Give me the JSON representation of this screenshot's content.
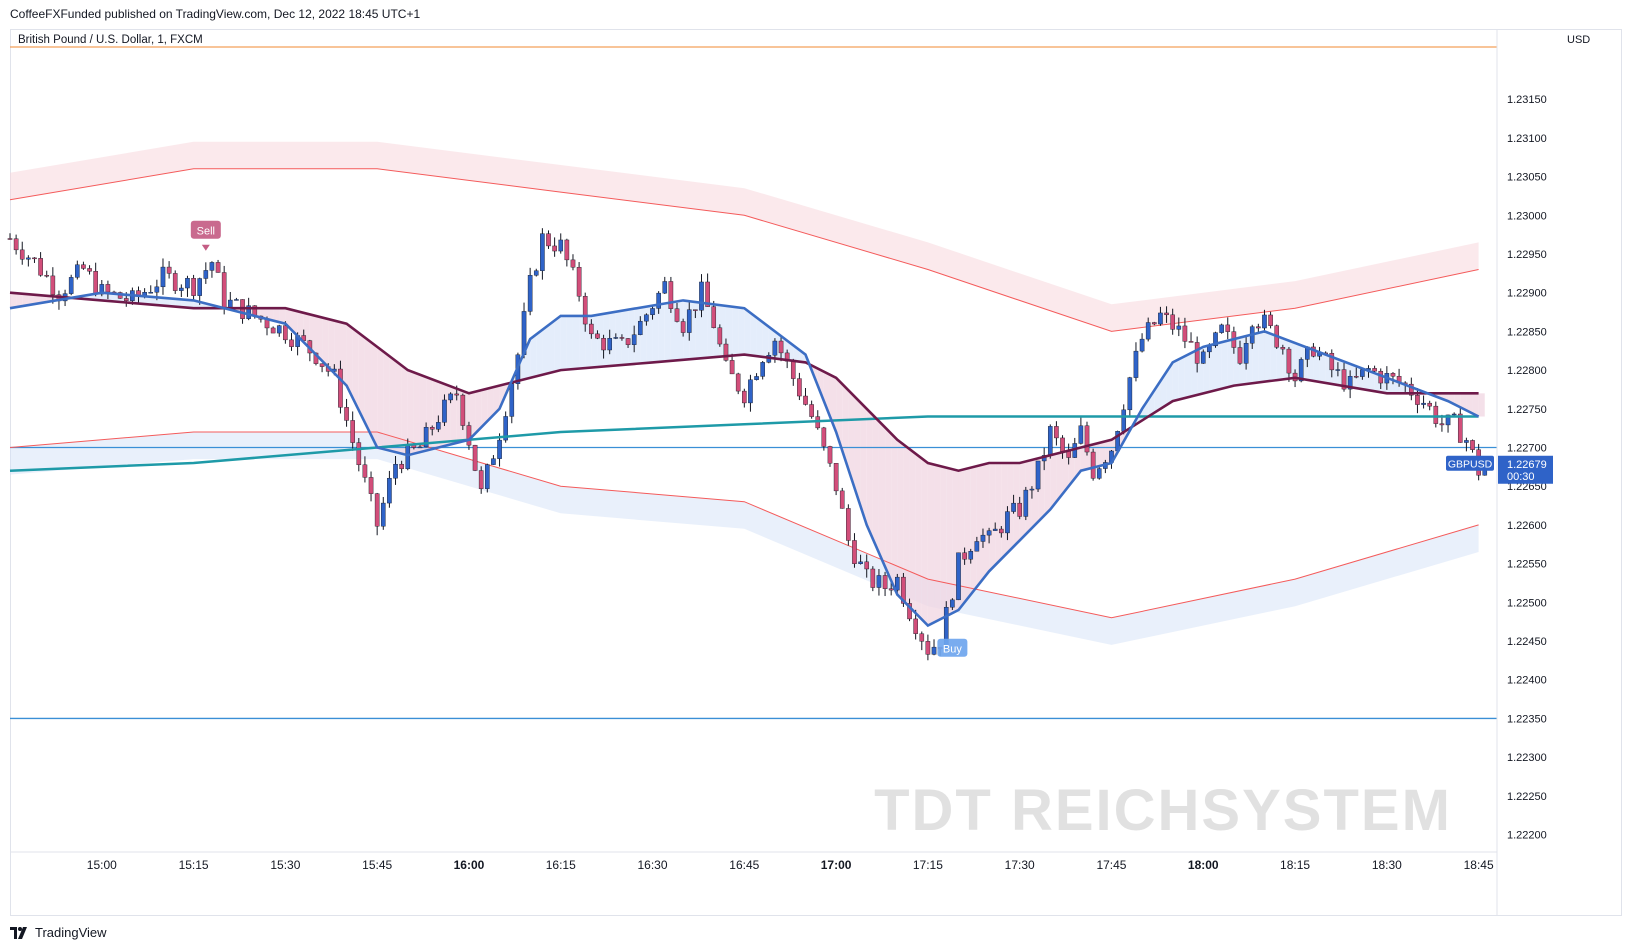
{
  "header": {
    "published": "CoffeeFXFunded published on TradingView.com, Dec 12, 2022 18:45 UTC+1",
    "symbol_title": "British Pound / U.S. Dollar, 1, FXCM",
    "currency": "USD"
  },
  "footer": {
    "brand": "TradingView"
  },
  "watermark": "TDT REICHSYSTEM",
  "colors": {
    "up": "#2f63c8",
    "down": "#d24e7a",
    "fast_ma": "#3c6ec4",
    "slow_ma": "#6e1a4a",
    "long_ma": "#1e9aa8",
    "band": "#f45b5b",
    "hline": "#3a8fd6",
    "top_line": "#f4a05a"
  },
  "chart_data": {
    "type": "candlestick",
    "symbol": "GBPUSD",
    "timeframe": "1",
    "last_price": "1.22679",
    "countdown": "00:30",
    "y_axis": {
      "range": [
        1.2218,
        1.2322
      ],
      "ticks": [
        "1.23150",
        "1.23100",
        "1.23050",
        "1.23000",
        "1.22950",
        "1.22900",
        "1.22850",
        "1.22800",
        "1.22750",
        "1.22700",
        "1.22650",
        "1.22600",
        "1.22550",
        "1.22500",
        "1.22450",
        "1.22400",
        "1.22350",
        "1.22300",
        "1.22250",
        "1.22200"
      ]
    },
    "x_axis": {
      "range": [
        "14:45",
        "18:48"
      ],
      "ticks": [
        {
          "t": "15:00",
          "bold": false
        },
        {
          "t": "15:15",
          "bold": false
        },
        {
          "t": "15:30",
          "bold": false
        },
        {
          "t": "15:45",
          "bold": false
        },
        {
          "t": "16:00",
          "bold": true
        },
        {
          "t": "16:15",
          "bold": false
        },
        {
          "t": "16:30",
          "bold": false
        },
        {
          "t": "16:45",
          "bold": false
        },
        {
          "t": "17:00",
          "bold": true
        },
        {
          "t": "17:15",
          "bold": false
        },
        {
          "t": "17:30",
          "bold": false
        },
        {
          "t": "17:45",
          "bold": false
        },
        {
          "t": "18:00",
          "bold": true
        },
        {
          "t": "18:15",
          "bold": false
        },
        {
          "t": "18:30",
          "bold": false
        },
        {
          "t": "18:45",
          "bold": false
        }
      ]
    },
    "horizontal_lines": [
      1.227,
      1.2235
    ],
    "close_path": [
      [
        "14:45",
        1.2297
      ],
      [
        "14:49",
        1.2294
      ],
      [
        "14:53",
        1.229
      ],
      [
        "14:57",
        1.2293
      ],
      [
        "15:00",
        1.229
      ],
      [
        "15:05",
        1.2289
      ],
      [
        "15:10",
        1.2292
      ],
      [
        "15:15",
        1.2291
      ],
      [
        "15:18",
        1.2294
      ],
      [
        "15:20",
        1.2289
      ],
      [
        "15:25",
        1.2287
      ],
      [
        "15:30",
        1.2285
      ],
      [
        "15:35",
        1.2282
      ],
      [
        "15:38",
        1.2279
      ],
      [
        "15:42",
        1.2268
      ],
      [
        "15:45",
        1.226
      ],
      [
        "15:48",
        1.2268
      ],
      [
        "15:52",
        1.227
      ],
      [
        "15:55",
        1.2274
      ],
      [
        "15:58",
        1.2277
      ],
      [
        "16:00",
        1.2271
      ],
      [
        "16:02",
        1.2264
      ],
      [
        "16:05",
        1.2272
      ],
      [
        "16:08",
        1.2282
      ],
      [
        "16:10",
        1.2291
      ],
      [
        "16:12",
        1.2297
      ],
      [
        "16:15",
        1.2296
      ],
      [
        "16:18",
        1.229
      ],
      [
        "16:20",
        1.2284
      ],
      [
        "16:25",
        1.2283
      ],
      [
        "16:28",
        1.2286
      ],
      [
        "16:32",
        1.2291
      ],
      [
        "16:35",
        1.2286
      ],
      [
        "16:38",
        1.229
      ],
      [
        "16:40",
        1.2286
      ],
      [
        "16:42",
        1.228
      ],
      [
        "16:45",
        1.2277
      ],
      [
        "16:48",
        1.2282
      ],
      [
        "16:50",
        1.2284
      ],
      [
        "16:53",
        1.2279
      ],
      [
        "16:56",
        1.2274
      ],
      [
        "17:00",
        1.2265
      ],
      [
        "17:02",
        1.2258
      ],
      [
        "17:05",
        1.2253
      ],
      [
        "17:08",
        1.2252
      ],
      [
        "17:10",
        1.2253
      ],
      [
        "17:12",
        1.2249
      ],
      [
        "17:15",
        1.2244
      ],
      [
        "17:17",
        1.2245
      ],
      [
        "17:20",
        1.2255
      ],
      [
        "17:23",
        1.2259
      ],
      [
        "17:25",
        1.2258
      ],
      [
        "17:28",
        1.2261
      ],
      [
        "17:30",
        1.2262
      ],
      [
        "17:33",
        1.2267
      ],
      [
        "17:35",
        1.2272
      ],
      [
        "17:38",
        1.2268
      ],
      [
        "17:40",
        1.2272
      ],
      [
        "17:42",
        1.2267
      ],
      [
        "17:45",
        1.227
      ],
      [
        "17:48",
        1.2279
      ],
      [
        "17:50",
        1.2284
      ],
      [
        "17:53",
        1.2287
      ],
      [
        "17:56",
        1.2285
      ],
      [
        "18:00",
        1.2281
      ],
      [
        "18:03",
        1.2285
      ],
      [
        "18:06",
        1.2282
      ],
      [
        "18:08",
        1.2287
      ],
      [
        "18:10",
        1.2286
      ],
      [
        "18:13",
        1.2283
      ],
      [
        "18:15",
        1.2279
      ],
      [
        "18:18",
        1.2283
      ],
      [
        "18:21",
        1.228
      ],
      [
        "18:24",
        1.2278
      ],
      [
        "18:27",
        1.228
      ],
      [
        "18:30",
        1.2279
      ],
      [
        "18:33",
        1.2278
      ],
      [
        "18:36",
        1.2276
      ],
      [
        "18:39",
        1.2273
      ],
      [
        "18:41",
        1.2273
      ],
      [
        "18:43",
        1.2271
      ],
      [
        "18:45",
        1.2267
      ],
      [
        "18:46",
        1.2268
      ]
    ],
    "indicators": {
      "fast_ma": [
        [
          "14:45",
          1.2288
        ],
        [
          "15:00",
          1.229
        ],
        [
          "15:15",
          1.2289
        ],
        [
          "15:30",
          1.2286
        ],
        [
          "15:40",
          1.2278
        ],
        [
          "15:45",
          1.227
        ],
        [
          "15:50",
          1.2269
        ],
        [
          "16:00",
          1.2271
        ],
        [
          "16:05",
          1.2275
        ],
        [
          "16:10",
          1.2284
        ],
        [
          "16:15",
          1.2287
        ],
        [
          "16:20",
          1.2287
        ],
        [
          "16:35",
          1.2289
        ],
        [
          "16:45",
          1.2288
        ],
        [
          "16:55",
          1.2282
        ],
        [
          "17:00",
          1.2272
        ],
        [
          "17:05",
          1.226
        ],
        [
          "17:10",
          1.2251
        ],
        [
          "17:15",
          1.2247
        ],
        [
          "17:20",
          1.2249
        ],
        [
          "17:25",
          1.2254
        ],
        [
          "17:30",
          1.2258
        ],
        [
          "17:35",
          1.2262
        ],
        [
          "17:40",
          1.2267
        ],
        [
          "17:45",
          1.2268
        ],
        [
          "17:50",
          1.2275
        ],
        [
          "17:55",
          1.2281
        ],
        [
          "18:00",
          1.2283
        ],
        [
          "18:10",
          1.2285
        ],
        [
          "18:20",
          1.2282
        ],
        [
          "18:30",
          1.2279
        ],
        [
          "18:40",
          1.2276
        ],
        [
          "18:45",
          1.2274
        ]
      ],
      "slow_ma": [
        [
          "14:45",
          1.229
        ],
        [
          "15:00",
          1.2289
        ],
        [
          "15:15",
          1.2288
        ],
        [
          "15:30",
          1.2288
        ],
        [
          "15:40",
          1.2286
        ],
        [
          "15:45",
          1.2283
        ],
        [
          "15:50",
          1.228
        ],
        [
          "16:00",
          1.2277
        ],
        [
          "16:15",
          1.228
        ],
        [
          "16:30",
          1.2281
        ],
        [
          "16:45",
          1.2282
        ],
        [
          "16:55",
          1.2281
        ],
        [
          "17:00",
          1.2279
        ],
        [
          "17:05",
          1.2275
        ],
        [
          "17:10",
          1.2271
        ],
        [
          "17:15",
          1.2268
        ],
        [
          "17:20",
          1.2267
        ],
        [
          "17:25",
          1.2268
        ],
        [
          "17:30",
          1.2268
        ],
        [
          "17:35",
          1.2269
        ],
        [
          "17:40",
          1.227
        ],
        [
          "17:45",
          1.2271
        ],
        [
          "17:55",
          1.2276
        ],
        [
          "18:05",
          1.2278
        ],
        [
          "18:15",
          1.2279
        ],
        [
          "18:30",
          1.2277
        ],
        [
          "18:40",
          1.2277
        ],
        [
          "18:45",
          1.2277
        ]
      ],
      "long_ma": [
        [
          "14:45",
          1.2267
        ],
        [
          "15:15",
          1.2268
        ],
        [
          "15:45",
          1.227
        ],
        [
          "16:15",
          1.2272
        ],
        [
          "16:45",
          1.2273
        ],
        [
          "17:15",
          1.2274
        ],
        [
          "17:45",
          1.2274
        ],
        [
          "18:15",
          1.2274
        ],
        [
          "18:45",
          1.2274
        ]
      ],
      "upper_band": [
        [
          "14:45",
          1.2302
        ],
        [
          "15:15",
          1.2306
        ],
        [
          "15:45",
          1.2306
        ],
        [
          "16:15",
          1.2303
        ],
        [
          "16:45",
          1.23
        ],
        [
          "17:15",
          1.2293
        ],
        [
          "17:45",
          1.2285
        ],
        [
          "18:15",
          1.2288
        ],
        [
          "18:45",
          1.2293
        ]
      ],
      "lower_band": [
        [
          "14:45",
          1.227
        ],
        [
          "15:15",
          1.2272
        ],
        [
          "15:45",
          1.2272
        ],
        [
          "16:15",
          1.2265
        ],
        [
          "16:45",
          1.2263
        ],
        [
          "17:15",
          1.2253
        ],
        [
          "17:45",
          1.2248
        ],
        [
          "18:15",
          1.2253
        ],
        [
          "18:45",
          1.226
        ]
      ]
    },
    "signals": [
      {
        "label": "Sell",
        "time": "15:17",
        "price": 1.2298,
        "kind": "sell"
      },
      {
        "label": "Buy",
        "time": "17:19",
        "price": 1.2244,
        "kind": "buy"
      }
    ]
  }
}
